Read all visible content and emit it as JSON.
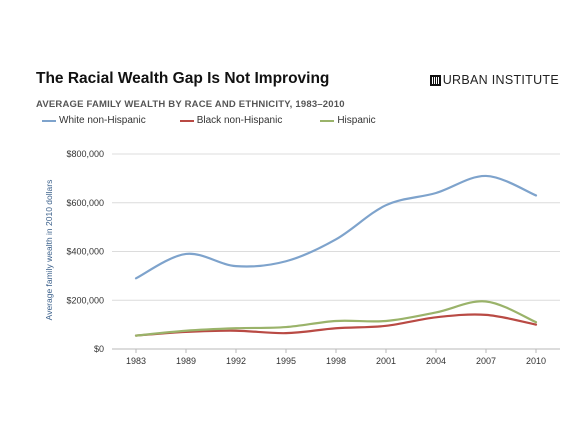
{
  "header": {
    "title": "The Racial Wealth Gap Is Not Improving",
    "brand": "URBAN INSTITUTE",
    "subtitle": "AVERAGE FAMILY WEALTH BY RACE AND ETHNICITY, 1983–2010"
  },
  "chart_data": {
    "type": "line",
    "title": "The Racial Wealth Gap Is Not Improving",
    "subtitle": "AVERAGE FAMILY WEALTH BY RACE AND ETHNICITY, 1983–2010",
    "xlabel": "",
    "ylabel": "Average family wealth in 2010 dollars",
    "categories": [
      "1983",
      "1989",
      "1992",
      "1995",
      "1998",
      "2001",
      "2004",
      "2007",
      "2010"
    ],
    "ylim": [
      0,
      800000
    ],
    "yticks": [
      0,
      200000,
      400000,
      600000,
      800000
    ],
    "ytick_labels": [
      "$0",
      "$200,000",
      "$400,000",
      "$600,000",
      "$800,000"
    ],
    "grid": true,
    "legend_position": "top-left",
    "series": [
      {
        "name": "White non-Hispanic",
        "color": "#7ea3cc",
        "values": [
          290000,
          390000,
          340000,
          360000,
          450000,
          590000,
          640000,
          710000,
          630000
        ]
      },
      {
        "name": "Black non-Hispanic",
        "color": "#b94a44",
        "values": [
          55000,
          70000,
          75000,
          65000,
          85000,
          95000,
          130000,
          140000,
          100000
        ]
      },
      {
        "name": "Hispanic",
        "color": "#9ab36a",
        "values": [
          55000,
          75000,
          85000,
          90000,
          115000,
          115000,
          150000,
          195000,
          110000
        ]
      }
    ]
  }
}
